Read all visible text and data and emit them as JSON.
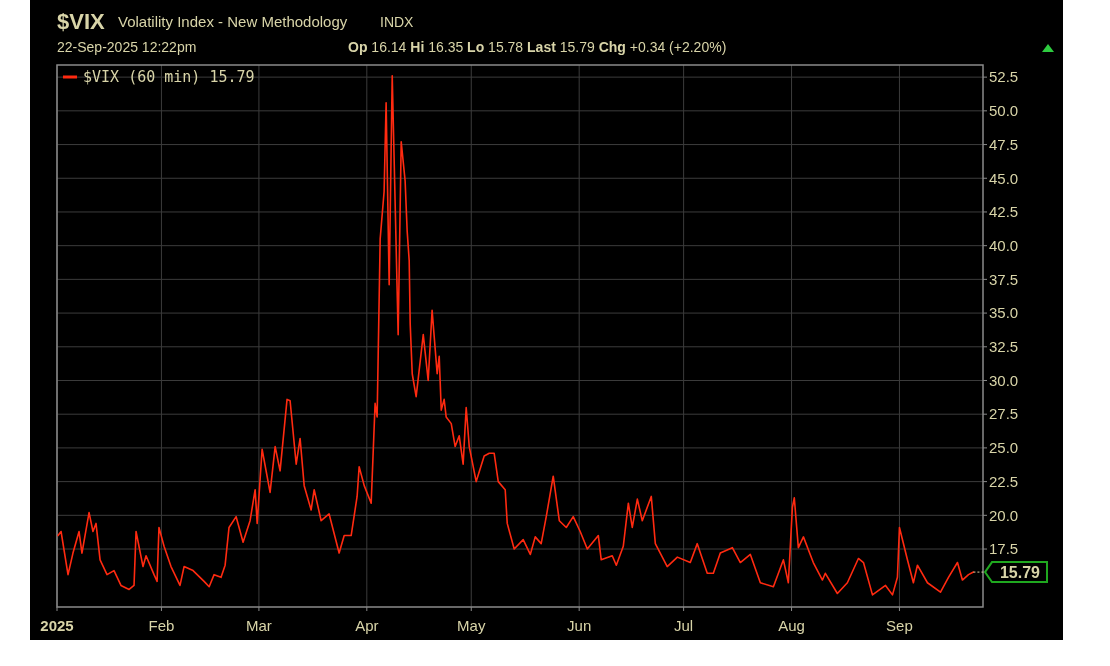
{
  "chart_data": {
    "type": "line",
    "title": "$VIX",
    "subtitle": "Volatility Index - New Methodology",
    "annotations": [
      "INDX",
      "22-Sep-2025 12:22pm",
      "Op 16.14 Hi 16.35 Lo 15.78 Last 15.79 Chg +0.34 (+2.20%)",
      {
        "text": "15.79",
        "x": "2025-09-22T06:00",
        "y": 15.79
      }
    ],
    "x": [
      "2025-01-02T07:00",
      "2025-01-03T04:00",
      "2025-01-05T04:00",
      "2025-01-06T14:00",
      "2025-01-08T08:00",
      "2025-01-09T04:00",
      "2025-01-11T05:00",
      "2025-01-12T08:00",
      "2025-01-13T05:00",
      "2025-01-14T09:00",
      "2025-01-16T09:00",
      "2025-01-18T09:00",
      "2025-01-20T09:00",
      "2025-01-22T17:00",
      "2025-01-24T03:00",
      "2025-01-24T17:00",
      "2025-01-26T17:00",
      "2025-01-27T14:00",
      "2025-01-29T21:00",
      "2025-01-30T18:00",
      "2025-01-31T07:00",
      "2025-02-01T18:00",
      "2025-02-03T18:00",
      "2025-02-06T08:00",
      "2025-02-07T12:00",
      "2025-02-10T02:00",
      "2025-02-13T06:00",
      "2025-02-14T17:00",
      "2025-02-16T03:00",
      "2025-02-18T03:00",
      "2025-02-19T07:00",
      "2025-02-20T10:00",
      "2025-02-22T11:00",
      "2025-02-24T11:00",
      "2025-02-26T11:00",
      "2025-02-27T22:00",
      "2025-02-28T12:00",
      "2025-03-01T22:00",
      "2025-03-04T05:00",
      "2025-03-05T16:00",
      "2025-03-07T02:00",
      "2025-03-09T02:00",
      "2025-03-09T23:00",
      "2025-03-11T17:00",
      "2025-03-12T20:00",
      "2025-03-14T00:00",
      "2025-03-16T00:00",
      "2025-03-16T21:00",
      "2025-03-18T21:00",
      "2025-03-21T04:00",
      "2025-03-24T01:00",
      "2025-03-25T12:00",
      "2025-03-27T12:00",
      "2025-03-29T05:00",
      "2025-03-29T19:00",
      "2025-03-31T06:00",
      "2025-04-02T06:00",
      "2025-04-03T09:00",
      "2025-04-03T23:00",
      "2025-04-04T20:00",
      "2025-04-05T23:00",
      "2025-04-06T13:00",
      "2025-04-07T10:00",
      "2025-04-08T07:00",
      "2025-04-10T00:00",
      "2025-04-10T21:00",
      "2025-04-12T00:00",
      "2025-04-12T14:00",
      "2025-04-13T04:00",
      "2025-04-13T11:00",
      "2025-04-14T01:00",
      "2025-04-15T04:00",
      "2025-04-17T05:00",
      "2025-04-18T15:00",
      "2025-04-19T18:00",
      "2025-04-21T05:00",
      "2025-04-21T19:00",
      "2025-04-22T09:00",
      "2025-04-23T05:00",
      "2025-04-23T19:00",
      "2025-04-25T06:00",
      "2025-04-26T09:00",
      "2025-04-27T13:00",
      "2025-04-28T16:00",
      "2025-04-29T13:00",
      "2025-04-30T10:00",
      "2025-05-02T10:00",
      "2025-05-04T17:00",
      "2025-05-06T04:00",
      "2025-05-07T14:00",
      "2025-05-08T18:00",
      "2025-05-10T18:00",
      "2025-05-11T08:00",
      "2025-05-13T08:00",
      "2025-05-15T22:00",
      "2025-05-17T23:00",
      "2025-05-19T09:00",
      "2025-05-21T02:00",
      "2025-05-22T13:00",
      "2025-05-24T13:00",
      "2025-05-26T07:00",
      "2025-05-28T07:00",
      "2025-05-30T07:00",
      "2025-06-01T07:00",
      "2025-06-03T08:00",
      "2025-06-06T12:00",
      "2025-06-07T08:00",
      "2025-06-10T12:00",
      "2025-06-11T16:00",
      "2025-06-13T16:00",
      "2025-06-15T03:00",
      "2025-06-16T06:00",
      "2025-06-17T17:00",
      "2025-06-19T03:00",
      "2025-06-21T17:00",
      "2025-06-22T21:00",
      "2025-06-26T07:00",
      "2025-06-29T05:00",
      "2025-07-02T22:00",
      "2025-07-04T22:00",
      "2025-07-07T19:00",
      "2025-07-09T13:00",
      "2025-07-11T13:00",
      "2025-07-15T00:00",
      "2025-07-17T07:00",
      "2025-07-20T04:00",
      "2025-07-23T01:00",
      "2025-07-26T19:00",
      "2025-07-29T16:00",
      "2025-07-31T02:00",
      "2025-08-01T06:00",
      "2025-08-01T19:00",
      "2025-08-02T23:00",
      "2025-08-04T10:00",
      "2025-08-07T06:00",
      "2025-08-09T21:00",
      "2025-08-10T17:00",
      "2025-08-14T04:00",
      "2025-08-17T01:00",
      "2025-08-20T05:00",
      "2025-08-21T16:00",
      "2025-08-24T06:00",
      "2025-08-28T00:00",
      "2025-08-30T00:00",
      "2025-08-31T10:00",
      "2025-09-01T00:00",
      "2025-09-03T07:00",
      "2025-09-05T00:00",
      "2025-09-06T04:00",
      "2025-09-09T01:00",
      "2025-09-12T19:00",
      "2025-09-15T02:00",
      "2025-09-17T16:00",
      "2025-09-19T02:00",
      "2025-09-20T20:00",
      "2025-09-22T06:00"
    ],
    "series": [
      {
        "name": "$VIX (60 min) 15.79",
        "color": "#ff2a10",
        "values": [
          18.5,
          18.8,
          15.6,
          17.2,
          18.8,
          17.2,
          20.2,
          18.8,
          19.4,
          16.7,
          15.6,
          15.9,
          14.8,
          14.5,
          14.8,
          18.8,
          16.2,
          17.0,
          15.6,
          15.1,
          19.1,
          17.7,
          16.2,
          14.8,
          16.2,
          15.9,
          15.1,
          14.7,
          15.6,
          15.4,
          16.3,
          19.1,
          19.9,
          18.0,
          19.6,
          21.9,
          19.4,
          24.9,
          21.7,
          25.1,
          23.3,
          28.6,
          28.5,
          23.8,
          25.7,
          22.2,
          20.4,
          21.9,
          19.6,
          20.1,
          17.2,
          18.5,
          18.5,
          21.4,
          23.6,
          22.2,
          20.9,
          28.3,
          27.3,
          40.5,
          44.0,
          50.6,
          37.1,
          52.6,
          33.4,
          47.7,
          44.8,
          41.1,
          38.9,
          34.2,
          30.5,
          28.8,
          33.4,
          30.0,
          35.2,
          30.5,
          31.8,
          27.8,
          28.6,
          27.3,
          26.8,
          25.1,
          25.9,
          23.8,
          28.0,
          25.1,
          22.5,
          24.4,
          24.6,
          24.6,
          22.5,
          21.9,
          19.4,
          17.5,
          18.2,
          17.1,
          18.4,
          17.9,
          19.9,
          22.9,
          19.6,
          19.1,
          19.9,
          18.8,
          17.5,
          18.5,
          16.7,
          17.0,
          16.3,
          17.7,
          20.9,
          19.1,
          21.2,
          19.6,
          21.4,
          17.9,
          16.2,
          16.9,
          16.5,
          17.9,
          15.7,
          15.7,
          17.2,
          17.6,
          16.5,
          17.1,
          15.0,
          14.7,
          16.7,
          15.0,
          20.6,
          21.3,
          17.6,
          18.4,
          16.5,
          15.2,
          15.7,
          14.2,
          15.0,
          16.8,
          16.5,
          14.1,
          14.8,
          14.1,
          15.4,
          19.1,
          16.7,
          15.0,
          16.3,
          15.0,
          14.3,
          15.4,
          16.5,
          15.2,
          15.6,
          15.79
        ]
      }
    ],
    "xlim": [
      "2025-01-02T00:00",
      "2025-09-25T00:00"
    ],
    "xticks": [
      {
        "value": "2025-01-02T00:00",
        "label": "2025"
      },
      {
        "value": "2025-02-01T00:00",
        "label": "Feb"
      },
      {
        "value": "2025-03-01T00:00",
        "label": "Mar"
      },
      {
        "value": "2025-04-01T00:00",
        "label": "Apr"
      },
      {
        "value": "2025-05-01T00:00",
        "label": "May"
      },
      {
        "value": "2025-06-01T00:00",
        "label": "Jun"
      },
      {
        "value": "2025-07-01T00:00",
        "label": "Jul"
      },
      {
        "value": "2025-08-01T00:00",
        "label": "Aug"
      },
      {
        "value": "2025-09-01T00:00",
        "label": "Sep"
      }
    ],
    "ylim": [
      13.2,
      53.4
    ],
    "yticks": [
      {
        "value": 17.5,
        "label": "17.5"
      },
      {
        "value": 20,
        "label": "20.0"
      },
      {
        "value": 22.5,
        "label": "22.5"
      },
      {
        "value": 25,
        "label": "25.0"
      },
      {
        "value": 27.5,
        "label": "27.5"
      },
      {
        "value": 30,
        "label": "30.0"
      },
      {
        "value": 32.5,
        "label": "32.5"
      },
      {
        "value": 35,
        "label": "35.0"
      },
      {
        "value": 37.5,
        "label": "37.5"
      },
      {
        "value": 40,
        "label": "40.0"
      },
      {
        "value": 42.5,
        "label": "42.5"
      },
      {
        "value": 45,
        "label": "45.0"
      },
      {
        "value": 47.5,
        "label": "47.5"
      },
      {
        "value": 50,
        "label": "50.0"
      },
      {
        "value": 52.5,
        "label": "52.5"
      }
    ],
    "grid": true,
    "legend": "top left",
    "line_style": "solid"
  }
}
